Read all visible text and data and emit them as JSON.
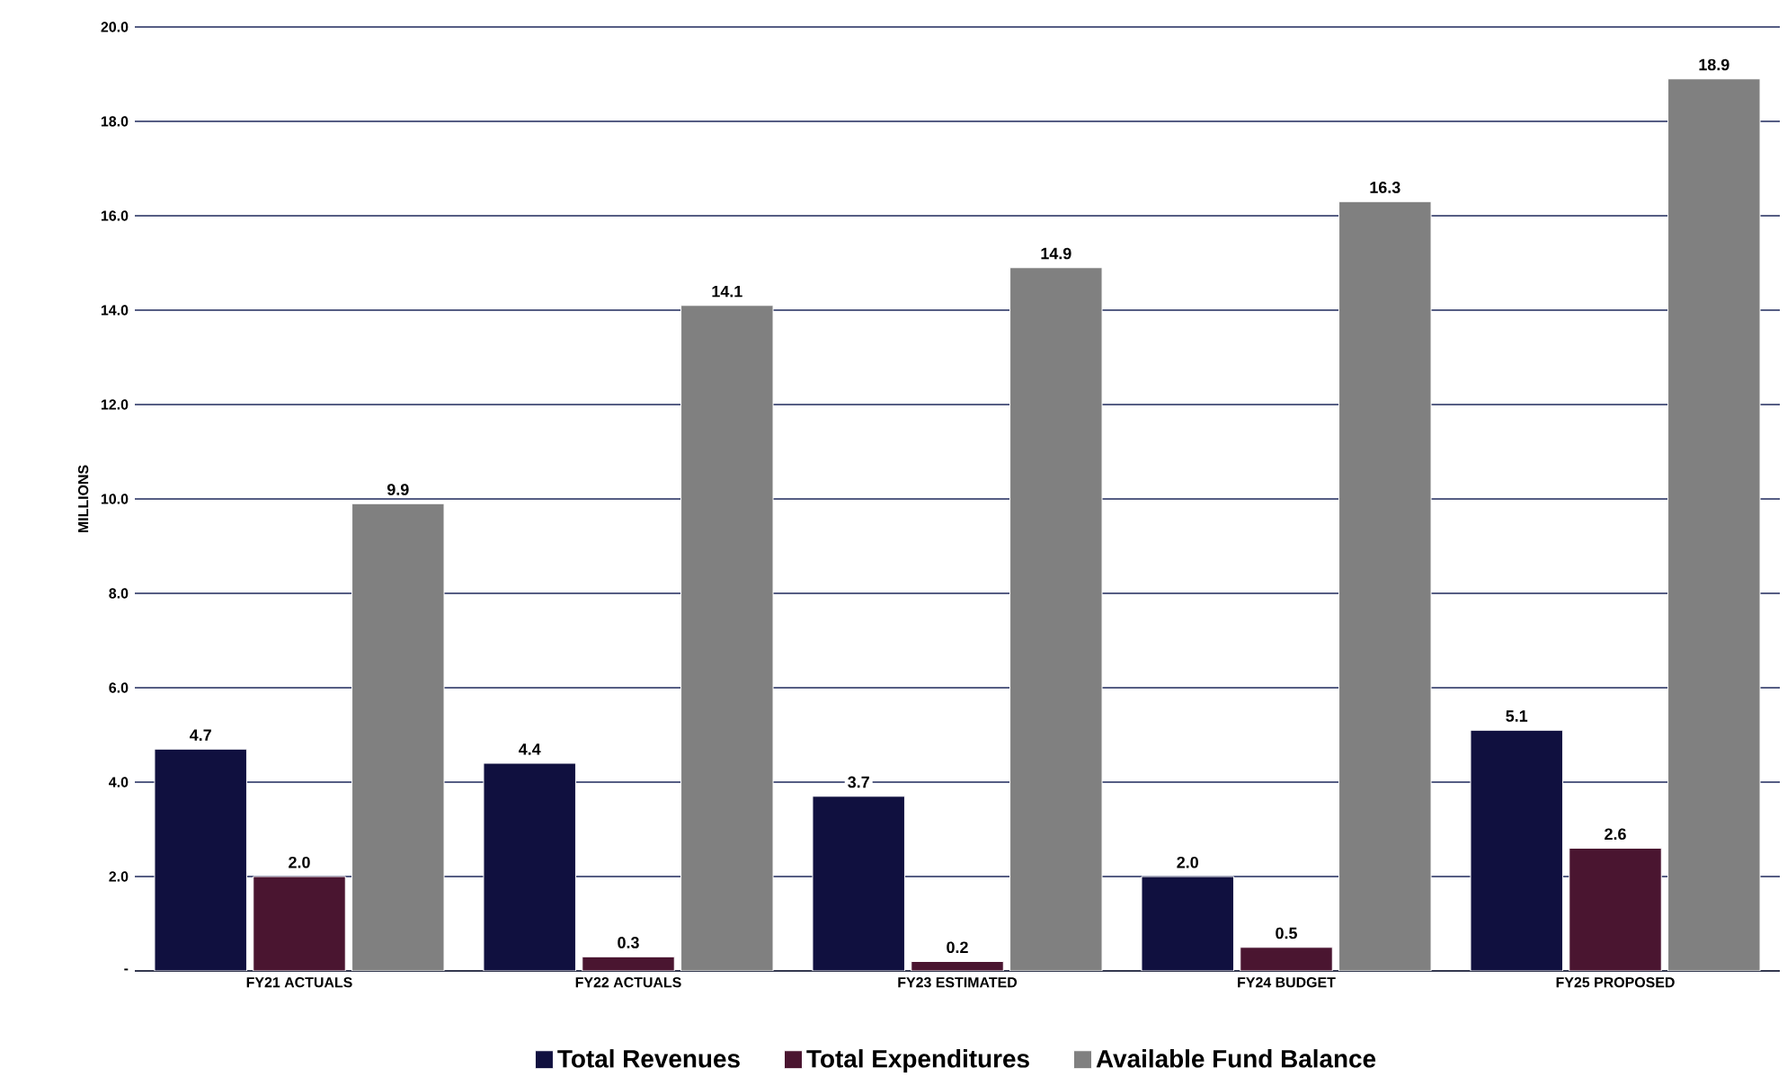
{
  "chart_data": {
    "type": "bar",
    "ylabel": "MILLIONS",
    "categories": [
      "FY21 ACTUALS",
      "FY22 ACTUALS",
      "FY23 ESTIMATED",
      "FY24 BUDGET",
      "FY25 PROPOSED"
    ],
    "series": [
      {
        "name": "Total Revenues",
        "color": "#10103f",
        "values": [
          4.7,
          4.4,
          3.7,
          2.0,
          5.1
        ],
        "value_labels": [
          "4.7",
          "4.4",
          "3.7",
          "2.0",
          "5.1"
        ]
      },
      {
        "name": "Total Expenditures",
        "color": "#4a1530",
        "values": [
          2.0,
          0.3,
          0.2,
          0.5,
          2.6
        ],
        "value_labels": [
          "2.0",
          "0.3",
          "0.2",
          "0.5",
          "2.6"
        ]
      },
      {
        "name": "Available Fund Balance",
        "color": "#808080",
        "values": [
          9.9,
          14.1,
          14.9,
          16.3,
          18.9
        ],
        "value_labels": [
          "9.9",
          "14.1",
          "14.9",
          "16.3",
          "18.9"
        ]
      }
    ],
    "ylim": [
      0,
      20
    ],
    "yticks": [
      {
        "value": 0,
        "label": "-"
      },
      {
        "value": 2,
        "label": "2.0"
      },
      {
        "value": 4,
        "label": "4.0"
      },
      {
        "value": 6,
        "label": "6.0"
      },
      {
        "value": 8,
        "label": "8.0"
      },
      {
        "value": 10,
        "label": "10.0"
      },
      {
        "value": 12,
        "label": "12.0"
      },
      {
        "value": 14,
        "label": "14.0"
      },
      {
        "value": 16,
        "label": "16.0"
      },
      {
        "value": 18,
        "label": "18.0"
      },
      {
        "value": 20,
        "label": "20.0"
      }
    ],
    "grid": "y",
    "legend": "bottom"
  }
}
